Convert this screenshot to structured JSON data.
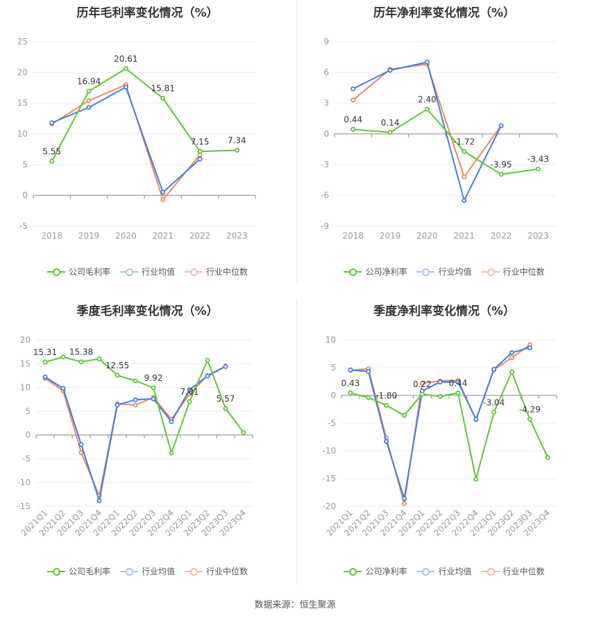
{
  "source_label": "数据来源：恒生聚源",
  "colors": {
    "company": "#5cc735",
    "industry_avg": "#3d7fe6",
    "industry_median": "#f0865c"
  },
  "legend_gross": [
    "公司毛利率",
    "行业均值",
    "行业中位数"
  ],
  "legend_net": [
    "公司净利率",
    "行业均值",
    "行业中位数"
  ],
  "chart_data": [
    {
      "type": "line",
      "title": "历年毛利率变化情况（%）",
      "categories": [
        "2018",
        "2019",
        "2020",
        "2021",
        "2022",
        "2023"
      ],
      "ylim": [
        -5,
        25
      ],
      "yticks": [
        -5,
        0,
        5,
        10,
        15,
        20,
        25
      ],
      "series": [
        {
          "name": "公司毛利率",
          "values": [
            5.55,
            16.94,
            20.61,
            15.81,
            7.15,
            7.34
          ]
        },
        {
          "name": "行业均值",
          "values": [
            11.8,
            14.3,
            17.6,
            0.5,
            5.9,
            null
          ]
        },
        {
          "name": "行业中位数",
          "values": [
            11.6,
            15.4,
            18.0,
            -0.7,
            6.6,
            null
          ]
        }
      ],
      "data_labels": [
        "5.55",
        "16.94",
        "20.61",
        "15.81",
        "7.15",
        "7.34"
      ],
      "legend_position": "bottom"
    },
    {
      "type": "line",
      "title": "历年净利率变化情况（%）",
      "categories": [
        "2018",
        "2019",
        "2020",
        "2021",
        "2022",
        "2023"
      ],
      "ylim": [
        -9,
        9
      ],
      "yticks": [
        -9,
        -6,
        -3,
        0,
        3,
        6,
        9
      ],
      "series": [
        {
          "name": "公司净利率",
          "values": [
            0.44,
            0.14,
            2.4,
            -1.72,
            -3.95,
            -3.43
          ]
        },
        {
          "name": "行业均值",
          "values": [
            4.4,
            6.2,
            7.0,
            -6.5,
            0.8,
            null
          ]
        },
        {
          "name": "行业中位数",
          "values": [
            3.3,
            6.3,
            6.8,
            -4.2,
            0.8,
            null
          ]
        }
      ],
      "data_labels": [
        "0.44",
        "0.14",
        "2.40",
        "-1.72",
        "-3.95",
        "-3.43"
      ],
      "legend_position": "bottom"
    },
    {
      "type": "line",
      "title": "季度毛利率变化情况（%）",
      "categories": [
        "2021Q1",
        "2021Q2",
        "2021Q3",
        "2021Q4",
        "2022Q1",
        "2022Q2",
        "2022Q3",
        "2022Q4",
        "2023Q1",
        "2023Q2",
        "2023Q3",
        "2023Q4"
      ],
      "ylim": [
        -15,
        20
      ],
      "yticks": [
        -15,
        -10,
        -5,
        0,
        5,
        10,
        15,
        20
      ],
      "series": [
        {
          "name": "公司毛利率",
          "values": [
            15.31,
            16.4,
            15.38,
            16.0,
            12.55,
            11.4,
            9.92,
            -3.8,
            7.01,
            15.7,
            5.57,
            0.5
          ]
        },
        {
          "name": "行业均值",
          "values": [
            12.2,
            9.8,
            -2.0,
            -13.8,
            6.3,
            7.4,
            7.6,
            2.8,
            9.5,
            12.4,
            14.4,
            null
          ]
        },
        {
          "name": "行业中位数",
          "values": [
            11.9,
            9.3,
            -3.7,
            -12.8,
            6.6,
            6.3,
            7.9,
            3.3,
            8.6,
            12.5,
            14.5,
            null
          ]
        }
      ],
      "data_labels": [
        "15.31",
        "",
        "15.38",
        "",
        "12.55",
        "",
        "9.92",
        "",
        "7.01",
        "",
        "5.57",
        ""
      ],
      "legend_position": "bottom"
    },
    {
      "type": "line",
      "title": "季度净利率变化情况（%）",
      "categories": [
        "2021Q1",
        "2021Q2",
        "2021Q3",
        "2021Q4",
        "2022Q1",
        "2022Q2",
        "2022Q3",
        "2022Q4",
        "2023Q1",
        "2023Q2",
        "2023Q3",
        "2023Q4"
      ],
      "ylim": [
        -20,
        10
      ],
      "yticks": [
        -20,
        -15,
        -10,
        -5,
        0,
        5,
        10
      ],
      "series": [
        {
          "name": "公司净利率",
          "values": [
            0.43,
            -0.4,
            -1.8,
            -3.6,
            0.22,
            -0.2,
            0.44,
            -15.1,
            -3.04,
            4.2,
            -4.29,
            -11.2
          ]
        },
        {
          "name": "行业均值",
          "values": [
            4.6,
            4.3,
            -8.3,
            -18.6,
            0.8,
            2.4,
            2.4,
            -4.3,
            4.7,
            7.7,
            8.6,
            null
          ]
        },
        {
          "name": "行业中位数",
          "values": [
            4.5,
            4.8,
            -7.7,
            -19.5,
            2.2,
            2.6,
            2.7,
            -4.4,
            4.6,
            6.8,
            9.1,
            null
          ]
        }
      ],
      "data_labels": [
        "0.43",
        "",
        "-1.80",
        "",
        "0.22",
        "",
        "0.44",
        "",
        "-3.04",
        "",
        "-4.29",
        ""
      ],
      "legend_position": "bottom"
    }
  ]
}
